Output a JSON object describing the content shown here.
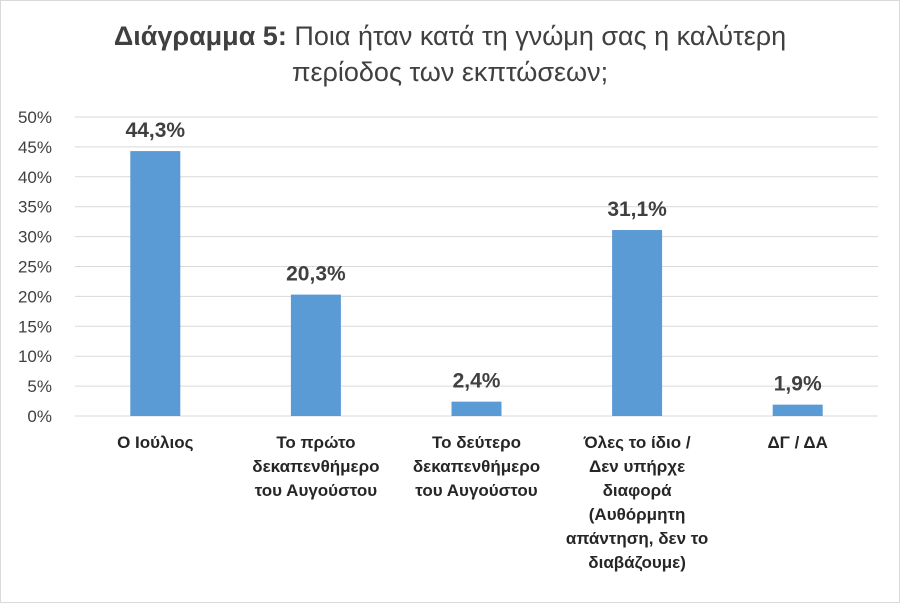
{
  "title": {
    "prefix": "Διάγραμμα 5:",
    "line1": "Ποια ήταν κατά τη γνώμη σας η καλύτερη",
    "line2": "περίοδος των εκπτώσεων;"
  },
  "colors": {
    "bar": "#5b9bd5",
    "grid": "#d9d9d9",
    "text": "#404040"
  },
  "chart_data": {
    "type": "bar",
    "categories": [
      "Ο Ιούλιος",
      "Το πρώτο δεκαπενθήμερο του Αυγούστου",
      "Το δεύτερο δεκαπενθήμερο του Αυγούστου",
      "Όλες το ίδιο / Δεν υπήρχε διαφορά (Αυθόρμητη απάντηση, δεν το διαβάζουμε)",
      "ΔΓ / ΔΑ"
    ],
    "category_lines": [
      [
        "Ο Ιούλιος"
      ],
      [
        "Το πρώτο",
        "δεκαπενθήμερο",
        "του Αυγούστου"
      ],
      [
        "Το δεύτερο",
        "δεκαπενθήμερο",
        "του Αυγούστου"
      ],
      [
        "Όλες το ίδιο /",
        "Δεν υπήρχε",
        "διαφορά",
        "(Αυθόρμητη",
        "απάντηση, δεν το",
        "διαβάζουμε)"
      ],
      [
        "ΔΓ / ΔΑ"
      ]
    ],
    "values": [
      44.3,
      20.3,
      2.4,
      31.1,
      1.9
    ],
    "data_labels": [
      "44,3%",
      "20,3%",
      "2,4%",
      "31,1%",
      "1,9%"
    ],
    "ylim": [
      0,
      50
    ],
    "yticks": [
      0,
      5,
      10,
      15,
      20,
      25,
      30,
      35,
      40,
      45,
      50
    ],
    "ytick_labels": [
      "0%",
      "5%",
      "10%",
      "15%",
      "20%",
      "25%",
      "30%",
      "35%",
      "40%",
      "45%",
      "50%"
    ],
    "grid": true,
    "legend": "none"
  }
}
